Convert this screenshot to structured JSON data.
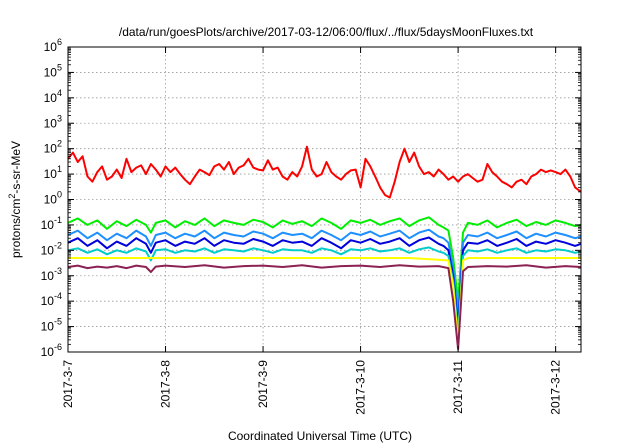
{
  "chart_data": {
    "type": "line",
    "title": "/data/run/goesPlots/archive/2017-03-12/06:00/flux/../flux/5daysMoonFluxes.txt",
    "xlabel": "Coordinated Universal Time (UTC)",
    "ylabel": "protons/cm2-s-sr-MeV",
    "ylabel_parts": {
      "pre": "protons/cm",
      "sup": "2",
      "post": "-s-sr-MeV"
    },
    "yscale": "log",
    "ylim": [
      1e-06,
      1000000.0
    ],
    "xlim": [
      0,
      5.26
    ],
    "grid": true,
    "legend": "none",
    "x_ticks": [
      {
        "value": 0,
        "label": "2017-3-7"
      },
      {
        "value": 1,
        "label": "2017-3-8"
      },
      {
        "value": 2,
        "label": "2017-3-9"
      },
      {
        "value": 3,
        "label": "2017-3-10"
      },
      {
        "value": 4,
        "label": "2017-3-11"
      },
      {
        "value": 5,
        "label": "2017-3-12"
      }
    ],
    "y_ticks": [
      {
        "exp": -6,
        "base": "10",
        "sup": "-6"
      },
      {
        "exp": -5,
        "base": "10",
        "sup": "-5"
      },
      {
        "exp": -4,
        "base": "10",
        "sup": "-4"
      },
      {
        "exp": -3,
        "base": "10",
        "sup": "-3"
      },
      {
        "exp": -2,
        "base": "10",
        "sup": "-2"
      },
      {
        "exp": -1,
        "base": "10",
        "sup": "-1"
      },
      {
        "exp": 0,
        "base": "10",
        "sup": "0"
      },
      {
        "exp": 1,
        "base": "10",
        "sup": "1"
      },
      {
        "exp": 2,
        "base": "10",
        "sup": "2"
      },
      {
        "exp": 3,
        "base": "10",
        "sup": "3"
      },
      {
        "exp": 4,
        "base": "10",
        "sup": "4"
      },
      {
        "exp": 5,
        "base": "10",
        "sup": "5"
      },
      {
        "exp": 6,
        "base": "10",
        "sup": "6"
      }
    ],
    "series": [
      {
        "color": "#ff0000",
        "x": [
          0,
          0.05,
          0.1,
          0.15,
          0.2,
          0.25,
          0.3,
          0.35,
          0.4,
          0.45,
          0.5,
          0.55,
          0.6,
          0.65,
          0.7,
          0.75,
          0.8,
          0.85,
          0.9,
          0.95,
          1.0,
          1.05,
          1.1,
          1.15,
          1.2,
          1.25,
          1.3,
          1.35,
          1.4,
          1.45,
          1.5,
          1.55,
          1.6,
          1.65,
          1.7,
          1.75,
          1.8,
          1.85,
          1.9,
          1.95,
          2.0,
          2.05,
          2.1,
          2.15,
          2.2,
          2.25,
          2.3,
          2.35,
          2.4,
          2.45,
          2.5,
          2.55,
          2.6,
          2.65,
          2.7,
          2.75,
          2.8,
          2.85,
          2.9,
          2.95,
          3.0,
          3.05,
          3.1,
          3.15,
          3.2,
          3.25,
          3.3,
          3.35,
          3.4,
          3.45,
          3.5,
          3.55,
          3.6,
          3.65,
          3.7,
          3.75,
          3.8,
          3.85,
          3.9,
          3.95,
          4.0,
          4.05,
          4.1,
          4.15,
          4.2,
          4.25,
          4.3,
          4.35,
          4.4,
          4.45,
          4.5,
          4.55,
          4.6,
          4.65,
          4.7,
          4.75,
          4.8,
          4.85,
          4.9,
          4.95,
          5.0,
          5.05,
          5.1,
          5.15,
          5.2,
          5.26
        ],
        "values": [
          40,
          70,
          30,
          50,
          8,
          5,
          12,
          20,
          6,
          8,
          15,
          7,
          40,
          12,
          18,
          22,
          10,
          25,
          15,
          8,
          20,
          12,
          18,
          10,
          6,
          4,
          8,
          15,
          12,
          9,
          20,
          25,
          15,
          30,
          10,
          18,
          22,
          40,
          18,
          15,
          14,
          35,
          15,
          18,
          8,
          6,
          12,
          8,
          20,
          120,
          15,
          8,
          10,
          30,
          12,
          8,
          6,
          10,
          14,
          15,
          3,
          40,
          20,
          8,
          3,
          1.5,
          1.2,
          5,
          30,
          100,
          30,
          70,
          20,
          10,
          12,
          8,
          15,
          10,
          6,
          8,
          5,
          8,
          10,
          7,
          5,
          6,
          25,
          12,
          8,
          5,
          4,
          3,
          5,
          6,
          4,
          8,
          10,
          15,
          12,
          14,
          12,
          10,
          15,
          8,
          3,
          2
        ]
      },
      {
        "color": "#00ee00",
        "x": [
          0,
          0.1,
          0.2,
          0.3,
          0.4,
          0.5,
          0.6,
          0.7,
          0.8,
          0.85,
          0.9,
          1.0,
          1.1,
          1.2,
          1.3,
          1.4,
          1.5,
          1.6,
          1.7,
          1.8,
          1.9,
          2.0,
          2.1,
          2.2,
          2.3,
          2.4,
          2.5,
          2.6,
          2.7,
          2.8,
          2.9,
          3.0,
          3.1,
          3.2,
          3.3,
          3.4,
          3.5,
          3.6,
          3.7,
          3.8,
          3.85,
          3.9,
          3.95,
          4.0,
          4.05,
          4.1,
          4.2,
          4.3,
          4.4,
          4.5,
          4.6,
          4.7,
          4.8,
          4.9,
          5.0,
          5.1,
          5.2,
          5.26
        ],
        "values": [
          0.12,
          0.18,
          0.1,
          0.15,
          0.07,
          0.14,
          0.09,
          0.16,
          0.1,
          0.05,
          0.12,
          0.15,
          0.08,
          0.14,
          0.1,
          0.18,
          0.09,
          0.15,
          0.12,
          0.1,
          0.16,
          0.13,
          0.08,
          0.15,
          0.11,
          0.14,
          0.09,
          0.18,
          0.12,
          0.07,
          0.15,
          0.12,
          0.16,
          0.1,
          0.14,
          0.18,
          0.09,
          0.15,
          0.2,
          0.1,
          0.08,
          0.06,
          0.005,
          0.0001,
          0.05,
          0.12,
          0.1,
          0.15,
          0.08,
          0.12,
          0.16,
          0.09,
          0.13,
          0.1,
          0.15,
          0.12,
          0.09,
          0.1
        ]
      },
      {
        "color": "#1e90ff",
        "x": [
          0,
          0.1,
          0.2,
          0.3,
          0.4,
          0.5,
          0.6,
          0.7,
          0.8,
          0.85,
          0.9,
          1.0,
          1.1,
          1.2,
          1.3,
          1.4,
          1.5,
          1.6,
          1.7,
          1.8,
          1.9,
          2.0,
          2.1,
          2.2,
          2.3,
          2.4,
          2.5,
          2.6,
          2.7,
          2.8,
          2.9,
          3.0,
          3.1,
          3.2,
          3.3,
          3.4,
          3.5,
          3.6,
          3.7,
          3.8,
          3.85,
          3.9,
          3.95,
          4.0,
          4.05,
          4.1,
          4.2,
          4.3,
          4.4,
          4.5,
          4.6,
          4.7,
          4.8,
          4.9,
          5.0,
          5.1,
          5.2,
          5.26
        ],
        "values": [
          0.04,
          0.06,
          0.03,
          0.05,
          0.025,
          0.045,
          0.03,
          0.06,
          0.035,
          0.015,
          0.04,
          0.05,
          0.03,
          0.045,
          0.035,
          0.06,
          0.03,
          0.05,
          0.04,
          0.035,
          0.055,
          0.045,
          0.03,
          0.05,
          0.04,
          0.045,
          0.03,
          0.06,
          0.04,
          0.025,
          0.05,
          0.04,
          0.055,
          0.035,
          0.045,
          0.06,
          0.03,
          0.05,
          0.065,
          0.035,
          0.03,
          0.02,
          0.002,
          3e-05,
          0.02,
          0.04,
          0.035,
          0.05,
          0.03,
          0.04,
          0.055,
          0.03,
          0.045,
          0.035,
          0.05,
          0.04,
          0.03,
          0.035
        ]
      },
      {
        "color": "#0000dd",
        "x": [
          0,
          0.1,
          0.2,
          0.3,
          0.4,
          0.5,
          0.6,
          0.7,
          0.8,
          0.85,
          0.9,
          1.0,
          1.1,
          1.2,
          1.3,
          1.4,
          1.5,
          1.6,
          1.7,
          1.8,
          1.9,
          2.0,
          2.1,
          2.2,
          2.3,
          2.4,
          2.5,
          2.6,
          2.7,
          2.8,
          2.9,
          3.0,
          3.1,
          3.2,
          3.3,
          3.4,
          3.5,
          3.6,
          3.7,
          3.8,
          3.85,
          3.9,
          3.95,
          4.0,
          4.05,
          4.1,
          4.2,
          4.3,
          4.4,
          4.5,
          4.6,
          4.7,
          4.8,
          4.9,
          5.0,
          5.1,
          5.2,
          5.26
        ],
        "values": [
          0.02,
          0.03,
          0.015,
          0.025,
          0.012,
          0.022,
          0.015,
          0.03,
          0.018,
          0.008,
          0.02,
          0.025,
          0.015,
          0.022,
          0.018,
          0.03,
          0.015,
          0.025,
          0.02,
          0.018,
          0.028,
          0.022,
          0.015,
          0.025,
          0.02,
          0.022,
          0.015,
          0.03,
          0.02,
          0.012,
          0.025,
          0.02,
          0.028,
          0.018,
          0.022,
          0.03,
          0.015,
          0.025,
          0.032,
          0.018,
          0.015,
          0.01,
          0.001,
          1e-05,
          0.01,
          0.02,
          0.018,
          0.025,
          0.015,
          0.02,
          0.028,
          0.015,
          0.022,
          0.018,
          0.025,
          0.02,
          0.015,
          0.018
        ]
      },
      {
        "color": "#00cccc",
        "x": [
          0,
          0.1,
          0.2,
          0.3,
          0.4,
          0.5,
          0.6,
          0.7,
          0.8,
          0.85,
          0.9,
          1.0,
          1.1,
          1.2,
          1.3,
          1.4,
          1.5,
          1.6,
          1.7,
          1.8,
          1.9,
          2.0,
          2.1,
          2.2,
          2.3,
          2.4,
          2.5,
          2.6,
          2.7,
          2.8,
          2.9,
          3.0,
          3.1,
          3.2,
          3.3,
          3.4,
          3.5,
          3.6,
          3.7,
          3.8,
          3.85,
          3.9,
          3.95,
          4.0,
          4.05,
          4.1,
          4.2,
          4.3,
          4.4,
          4.5,
          4.6,
          4.7,
          4.8,
          4.9,
          5.0,
          5.1,
          5.2,
          5.26
        ],
        "values": [
          0.01,
          0.012,
          0.008,
          0.011,
          0.007,
          0.01,
          0.008,
          0.012,
          0.009,
          0.004,
          0.01,
          0.011,
          0.008,
          0.01,
          0.009,
          0.012,
          0.008,
          0.011,
          0.01,
          0.009,
          0.012,
          0.01,
          0.008,
          0.011,
          0.01,
          0.01,
          0.008,
          0.012,
          0.01,
          0.007,
          0.011,
          0.01,
          0.012,
          0.009,
          0.01,
          0.012,
          0.008,
          0.011,
          0.013,
          0.009,
          0.008,
          0.006,
          0.0006,
          5e-06,
          0.006,
          0.01,
          0.009,
          0.011,
          0.008,
          0.01,
          0.012,
          0.008,
          0.01,
          0.009,
          0.011,
          0.01,
          0.008,
          0.009
        ]
      },
      {
        "color": "#ffff00",
        "x": [
          0,
          0.5,
          0.85,
          1.0,
          1.5,
          2.0,
          2.5,
          3.0,
          3.5,
          3.9,
          3.95,
          4.0,
          4.05,
          4.1,
          4.5,
          5.0,
          5.26
        ],
        "values": [
          0.005,
          0.005,
          0.005,
          0.005,
          0.005,
          0.005,
          0.005,
          0.005,
          0.005,
          0.004,
          0.0004,
          2e-06,
          0.004,
          0.005,
          0.005,
          0.005,
          0.005
        ]
      },
      {
        "color": "#8b2252",
        "x": [
          0,
          0.1,
          0.2,
          0.3,
          0.4,
          0.5,
          0.6,
          0.7,
          0.8,
          0.85,
          0.9,
          1.0,
          1.2,
          1.4,
          1.6,
          1.8,
          2.0,
          2.2,
          2.4,
          2.6,
          2.8,
          3.0,
          3.2,
          3.4,
          3.6,
          3.8,
          3.9,
          3.95,
          4.0,
          4.05,
          4.1,
          4.3,
          4.5,
          4.7,
          4.9,
          5.1,
          5.26
        ],
        "values": [
          0.0022,
          0.0025,
          0.002,
          0.0023,
          0.0021,
          0.0024,
          0.002,
          0.0025,
          0.0022,
          0.0014,
          0.0023,
          0.0025,
          0.0022,
          0.0026,
          0.0021,
          0.0024,
          0.0025,
          0.0022,
          0.0026,
          0.0021,
          0.0024,
          0.0025,
          0.0022,
          0.0026,
          0.0023,
          0.0024,
          0.002,
          0.0001,
          1.3e-06,
          0.0015,
          0.0022,
          0.0024,
          0.0023,
          0.0026,
          0.0021,
          0.0024,
          0.0022
        ]
      }
    ]
  }
}
